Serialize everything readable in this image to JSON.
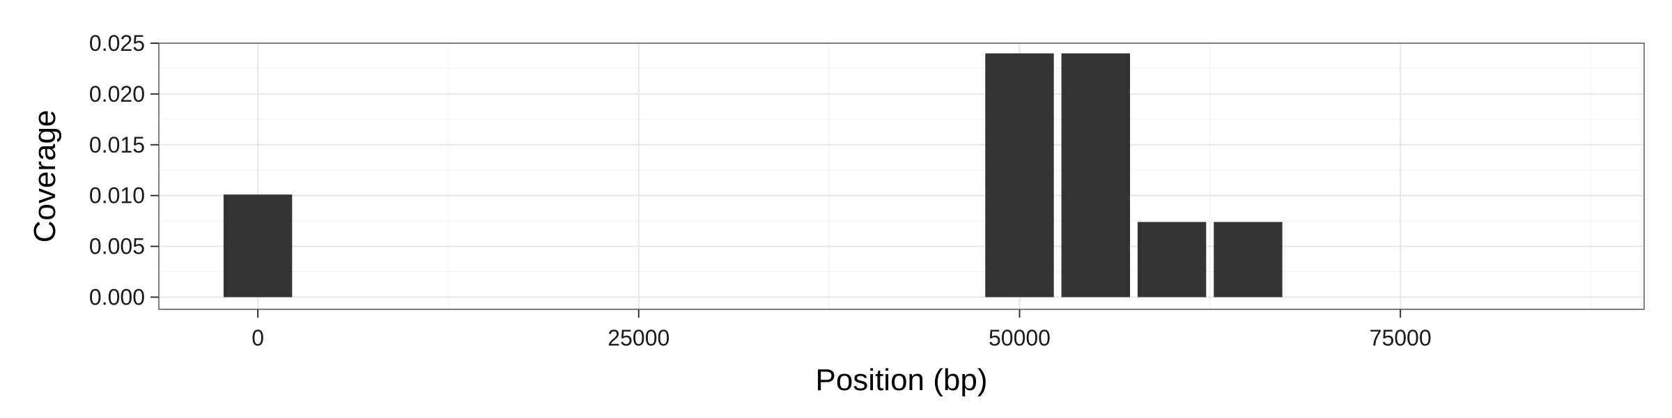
{
  "chart_data": {
    "type": "bar",
    "title": "",
    "xlabel": "Position (bp)",
    "ylabel": "Coverage",
    "x": [
      0,
      50000,
      55000,
      60000,
      65000
    ],
    "values": [
      0.0101,
      0.024,
      0.024,
      0.0074,
      0.0074
    ],
    "bin_width": 4500,
    "xlim": [
      -6500,
      91000
    ],
    "ylim": [
      -0.0012,
      0.025
    ],
    "x_ticks": [
      0,
      25000,
      50000,
      75000
    ],
    "x_tick_labels": [
      "0",
      "25000",
      "50000",
      "75000"
    ],
    "y_ticks": [
      0.0,
      0.005,
      0.01,
      0.015,
      0.02,
      0.025
    ],
    "y_tick_labels": [
      "0.000",
      "0.005",
      "0.010",
      "0.015",
      "0.020",
      "0.025"
    ],
    "grid": true,
    "legend": "none",
    "colors": {
      "bar": "#333333",
      "panel_border": "#7f7f7f",
      "grid_major": "#e6e6e6",
      "grid_minor": "#f4f4f4"
    }
  }
}
